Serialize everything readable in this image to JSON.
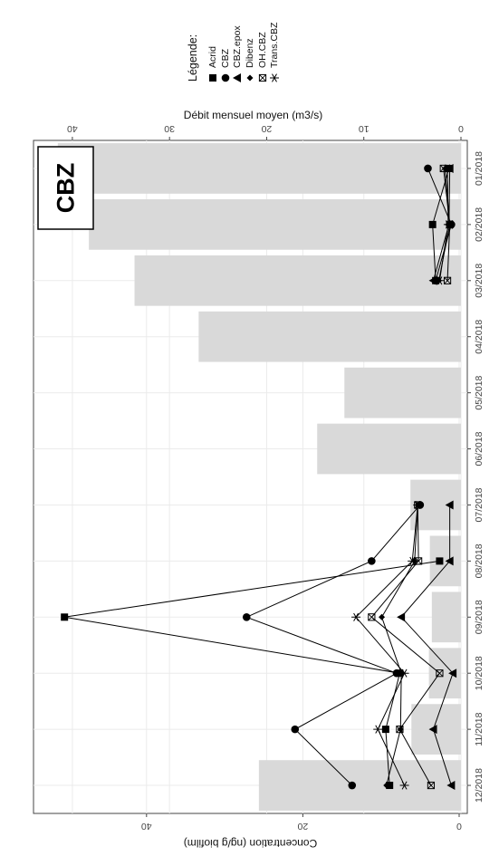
{
  "chart_data": {
    "type": "bar+line",
    "panel_label": "CBZ",
    "categories": [
      "01/2018",
      "02/2018",
      "03/2018",
      "04/2018",
      "05/2018",
      "06/2018",
      "07/2018",
      "08/2018",
      "09/2018",
      "10/2018",
      "11/2018",
      "12/2018"
    ],
    "bars": {
      "axis_label": "Débit mensuel moyen (m3/s)",
      "ylim": [
        0,
        44
      ],
      "ticks": [
        0,
        10,
        20,
        30,
        40
      ],
      "color": "#d9d9d9",
      "values": [
        41.5,
        38.3,
        33.6,
        27.0,
        12.0,
        14.8,
        5.2,
        3.2,
        3.0,
        3.3,
        5.1,
        20.8
      ]
    },
    "lines": {
      "axis_label": "Concentration (ng/g biofilm)",
      "ylim": [
        -0.5,
        58
      ],
      "ticks": [
        0,
        20,
        40
      ],
      "legend_title": "Légende:",
      "series": [
        {
          "name": "Acrid",
          "marker": "square",
          "values": [
            1.3,
            3.4,
            3.0,
            null,
            null,
            null,
            null,
            2.5,
            50.5,
            7.6,
            9.4,
            8.9
          ]
        },
        {
          "name": "CBZ",
          "marker": "circle",
          "values": [
            4.0,
            1.0,
            3.0,
            null,
            null,
            null,
            5.0,
            11.2,
            27.2,
            8.0,
            21.0,
            13.7
          ]
        },
        {
          "name": "CBZ.epox",
          "marker": "triangle",
          "values": [
            1.2,
            1.3,
            3.3,
            null,
            null,
            null,
            1.2,
            1.2,
            7.4,
            0.8,
            3.3,
            1.0
          ]
        },
        {
          "name": "Dibenz",
          "marker": "diamond",
          "values": [
            1.8,
            1.2,
            2.6,
            null,
            null,
            null,
            5.3,
            5.7,
            9.9,
            7.4,
            7.5,
            9.3
          ]
        },
        {
          "name": "OH.CBZ",
          "marker": "boxcross",
          "values": [
            2.0,
            1.2,
            1.5,
            null,
            null,
            null,
            5.3,
            5.2,
            11.2,
            2.5,
            7.6,
            3.6
          ]
        },
        {
          "name": "Trans.CBZ",
          "marker": "asterisk",
          "values": [
            1.5,
            1.4,
            2.5,
            null,
            null,
            null,
            5.3,
            6.0,
            13.2,
            7.0,
            10.4,
            7.0
          ]
        }
      ]
    },
    "grid": true,
    "legend_position": "top-right"
  }
}
